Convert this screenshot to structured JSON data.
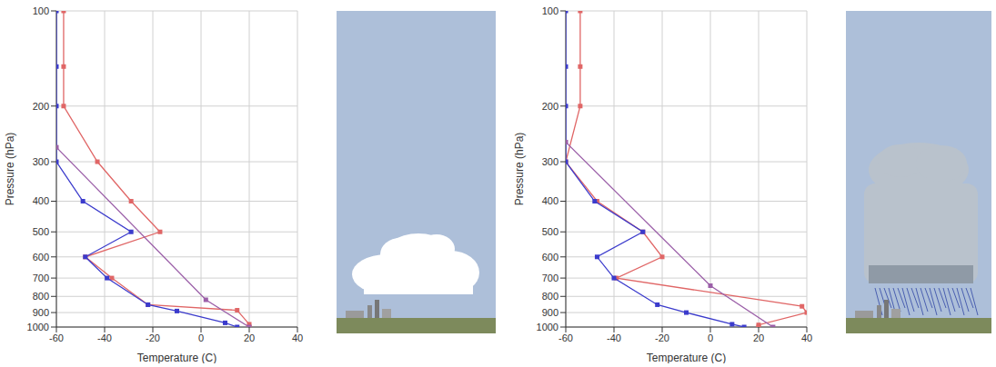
{
  "chart_data": [
    {
      "type": "line",
      "xlabel": "Temperature (C)",
      "ylabel": "Pressure (hPa)",
      "xlim": [
        -60,
        40
      ],
      "xticks": [
        -60,
        -40,
        -20,
        0,
        20,
        40
      ],
      "ylim": [
        100,
        1000
      ],
      "yticks": [
        100,
        200,
        300,
        400,
        500,
        600,
        700,
        800,
        900,
        1000
      ],
      "log": "y",
      "grid": true,
      "series": [
        {
          "color": "#e06666",
          "marker": "square",
          "x": [
            20,
            20,
            15,
            -22,
            -37,
            -48,
            -17,
            -29,
            -43,
            -57,
            -57,
            -57
          ],
          "y": [
            1000,
            980,
            885,
            850,
            700,
            600,
            500,
            400,
            300,
            200,
            150,
            100
          ]
        },
        {
          "color": "#3b3bcc",
          "marker": "square",
          "x": [
            15,
            10,
            -10,
            -22,
            -39,
            -48,
            -29,
            -49,
            -60,
            -60,
            -60,
            -60
          ],
          "y": [
            1000,
            970,
            890,
            850,
            700,
            600,
            500,
            400,
            300,
            200,
            150,
            100
          ]
        },
        {
          "color": "#9b5fa8",
          "marker": "square",
          "x": [
            20,
            2,
            -60
          ],
          "y": [
            1000,
            820,
            270
          ]
        }
      ]
    },
    {
      "type": "line",
      "xlabel": "Temperature (C)",
      "ylabel": "Pressure (hPa)",
      "xlim": [
        -60,
        40
      ],
      "xticks": [
        -60,
        -40,
        -20,
        0,
        20,
        40
      ],
      "ylim": [
        100,
        1000
      ],
      "yticks": [
        100,
        200,
        300,
        400,
        500,
        600,
        700,
        800,
        900,
        1000
      ],
      "log": "y",
      "grid": true,
      "series": [
        {
          "color": "#e06666",
          "marker": "square",
          "x": [
            20,
            20,
            40,
            38,
            -39,
            -20,
            -28,
            -47,
            -60,
            -54,
            -54,
            -54
          ],
          "y": [
            1000,
            985,
            900,
            860,
            700,
            600,
            500,
            400,
            300,
            200,
            150,
            100
          ]
        },
        {
          "color": "#3b3bcc",
          "marker": "square",
          "x": [
            14,
            9,
            -10,
            -22,
            -40,
            -47,
            -28,
            -48,
            -60,
            -60,
            -60,
            -60
          ],
          "y": [
            1000,
            980,
            900,
            850,
            700,
            600,
            500,
            400,
            300,
            200,
            150,
            100
          ]
        },
        {
          "color": "#9b5fa8",
          "marker": "square",
          "x": [
            26,
            0,
            -60
          ],
          "y": [
            1000,
            740,
            260
          ]
        }
      ]
    }
  ]
}
